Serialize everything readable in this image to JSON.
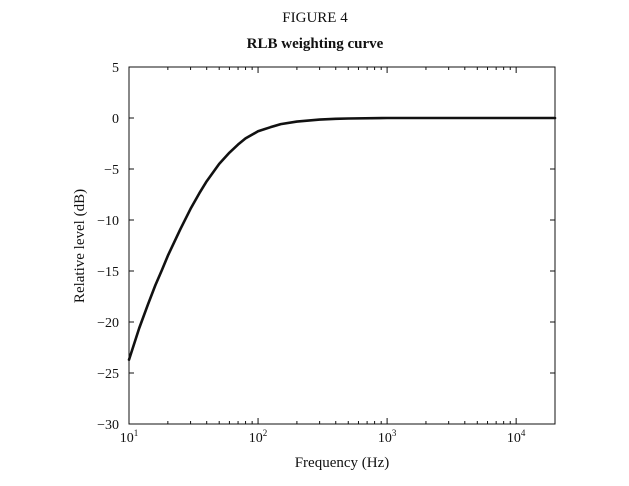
{
  "figure_label": "FIGURE 4",
  "chart_data": {
    "type": "line",
    "title": "RLB weighting curve",
    "xlabel": "Frequency (Hz)",
    "ylabel": "Relative level (dB)",
    "xscale": "log",
    "xlim": [
      10,
      20000
    ],
    "ylim": [
      -30,
      5
    ],
    "grid": false,
    "x_ticks": [
      {
        "value": 10,
        "base": "10",
        "exp": "1"
      },
      {
        "value": 100,
        "base": "10",
        "exp": "2"
      },
      {
        "value": 1000,
        "base": "10",
        "exp": "3"
      },
      {
        "value": 10000,
        "base": "10",
        "exp": "4"
      }
    ],
    "y_ticks": [
      {
        "value": 5,
        "label": "5"
      },
      {
        "value": 0,
        "label": "0"
      },
      {
        "value": -5,
        "label": "−5"
      },
      {
        "value": -10,
        "label": "−10"
      },
      {
        "value": -15,
        "label": "−15"
      },
      {
        "value": -20,
        "label": "−20"
      },
      {
        "value": -25,
        "label": "−25"
      },
      {
        "value": -30,
        "label": "−30"
      }
    ],
    "series": [
      {
        "color": "#111111",
        "x": [
          10,
          12,
          14,
          16,
          18,
          20,
          25,
          30,
          35,
          40,
          50,
          60,
          70,
          80,
          100,
          125,
          150,
          200,
          300,
          400,
          500,
          1000,
          2000,
          5000,
          10000,
          20000
        ],
        "y": [
          -23.7,
          -20.6,
          -18.3,
          -16.4,
          -14.9,
          -13.5,
          -10.9,
          -8.9,
          -7.4,
          -6.2,
          -4.5,
          -3.4,
          -2.6,
          -2.0,
          -1.3,
          -0.9,
          -0.6,
          -0.35,
          -0.15,
          -0.08,
          -0.05,
          0,
          0,
          0,
          0,
          0
        ]
      }
    ]
  }
}
